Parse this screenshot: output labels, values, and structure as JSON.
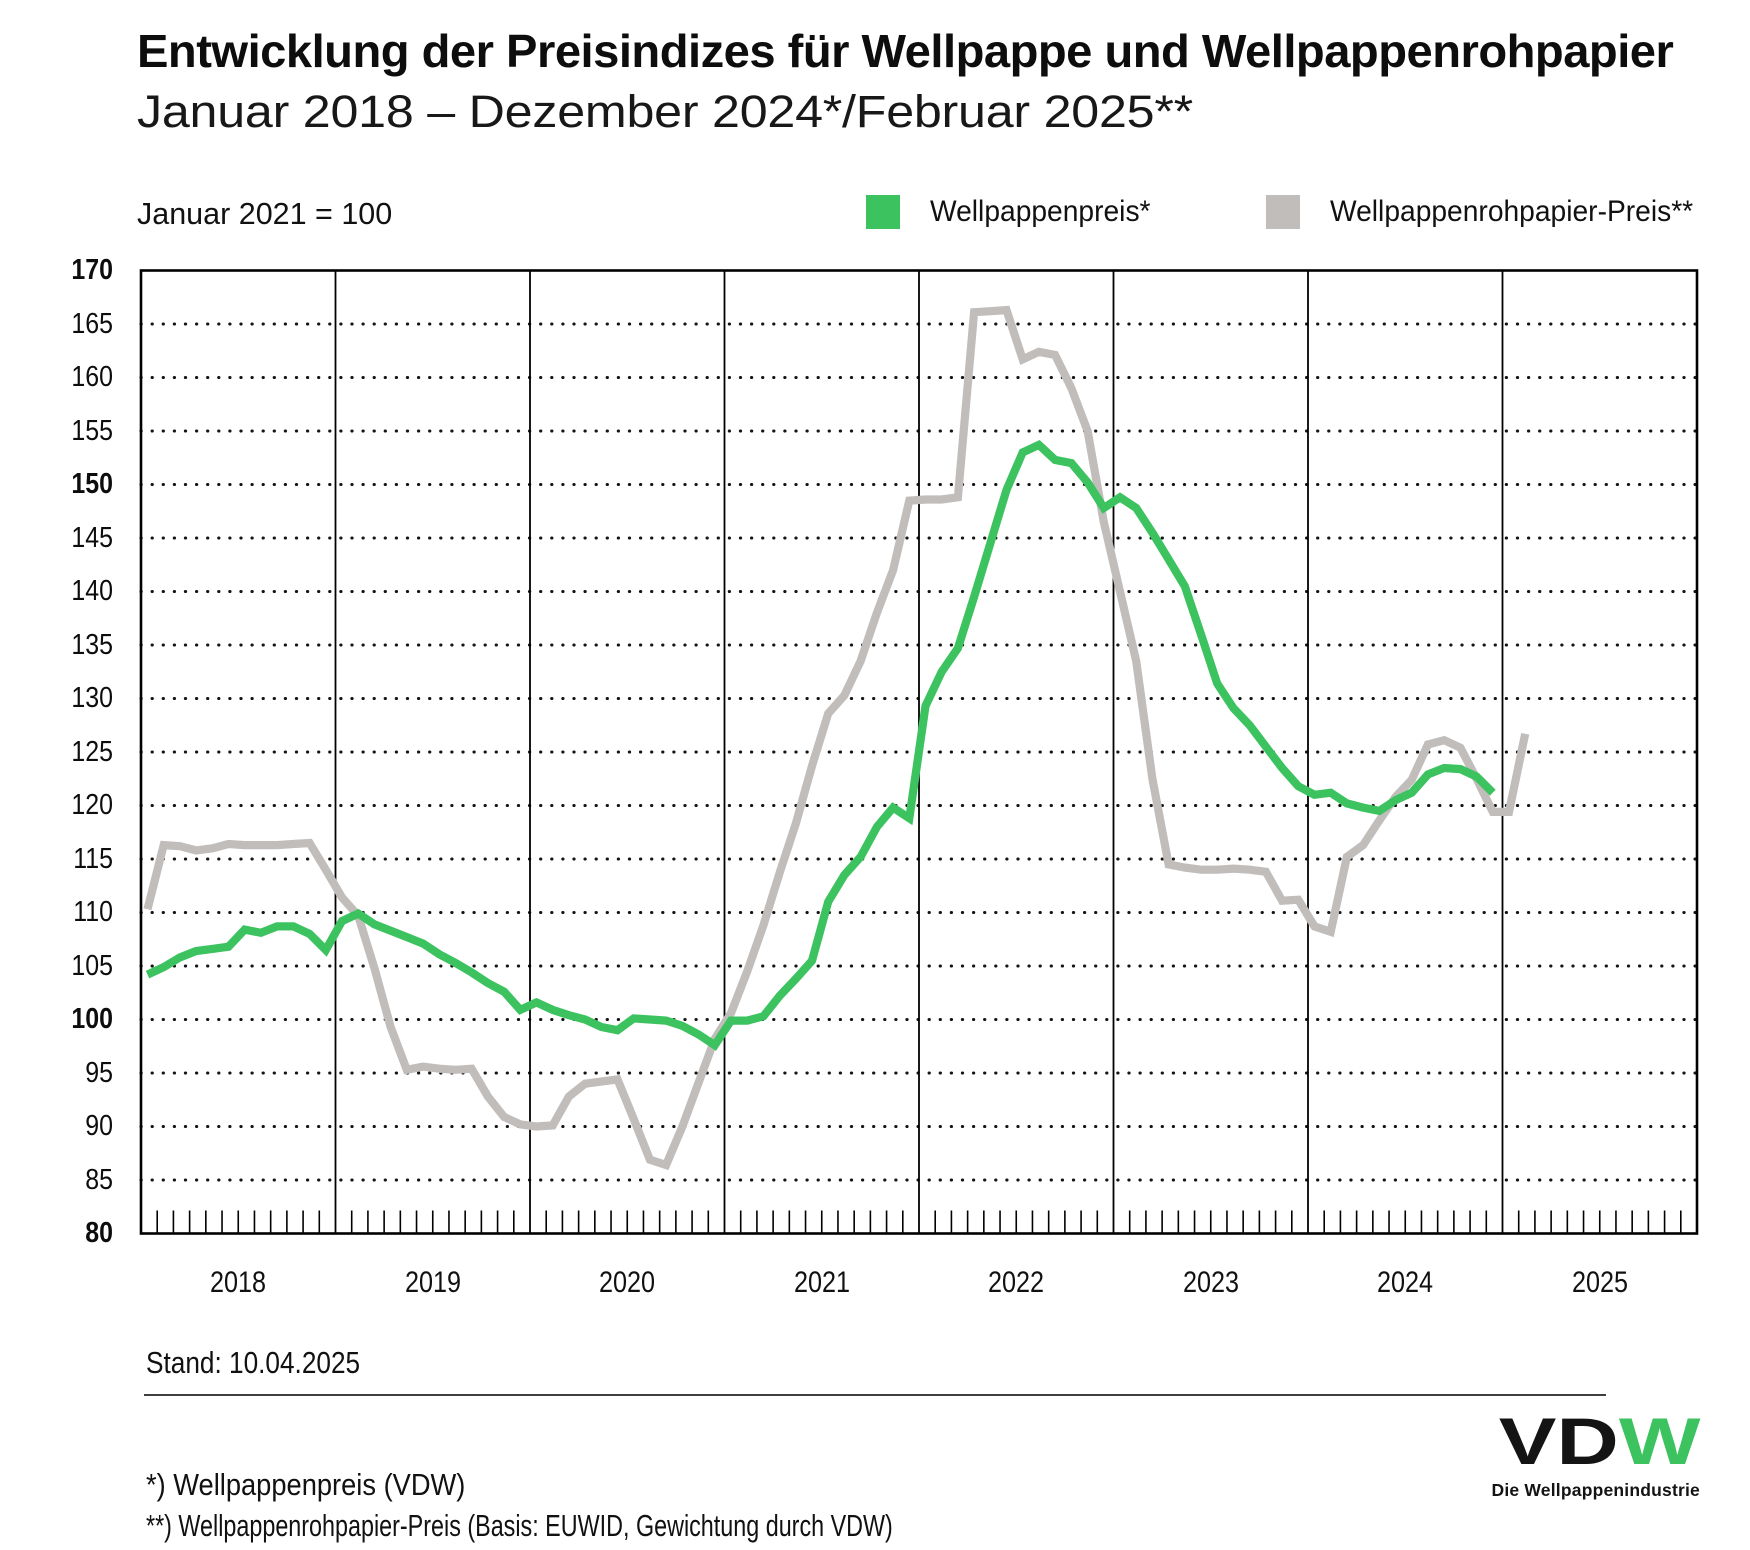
{
  "title": "Entwicklung der Preisindizes für Wellpappe und Wellpappenrohpapier",
  "subtitle": "Januar 2018 – Dezember 2024*/Februar 2025**",
  "base_note": "Januar 2021 = 100",
  "legend": [
    {
      "label": "Wellpappenpreis*",
      "color": "#3cc35f"
    },
    {
      "label": "Wellpappenrohpapier-Preis**",
      "color": "#c1bdbb"
    }
  ],
  "stand": "Stand: 10.04.2025",
  "footnotes": [
    "*) Wellpappenpreis (VDW)",
    "**) Wellpappenrohpapier-Preis (Basis: EUWID, Gewichtung durch VDW)"
  ],
  "logo": {
    "text_dark": "VD",
    "text_green": "W",
    "tagline": "Die Wellpappenindustrie"
  },
  "chart_data": {
    "type": "line",
    "title": "Entwicklung der Preisindizes für Wellpappe und Wellpappenrohpapier",
    "subtitle": "Januar 2018 – Dezember 2024*/Februar 2025**",
    "index_base": "Januar 2021 = 100",
    "ylim": [
      80,
      170
    ],
    "ytick_step": 5,
    "ytick_bold": [
      80,
      100,
      150,
      170
    ],
    "grid": "horizontal-dotted",
    "x_years": [
      2018,
      2019,
      2020,
      2021,
      2022,
      2023,
      2024,
      2025
    ],
    "x_monthly_start": "2018-01",
    "legend_position": "top",
    "series": [
      {
        "name": "Wellpappenpreis*",
        "source_note": "*) Wellpappenpreis (VDW)",
        "color": "#3cc35f",
        "start": "2018-01",
        "end": "2024-12",
        "values": [
          104.2,
          104.9,
          105.8,
          106.4,
          106.6,
          106.8,
          108.4,
          108.1,
          108.7,
          108.7,
          108.0,
          106.5,
          109.2,
          109.9,
          108.9,
          108.3,
          107.7,
          107.1,
          106.1,
          105.3,
          104.4,
          103.4,
          102.6,
          100.9,
          101.6,
          100.9,
          100.4,
          100.0,
          99.3,
          99.0,
          100.1,
          100.0,
          99.9,
          99.4,
          98.6,
          97.6,
          99.9,
          99.9,
          100.3,
          102.2,
          103.8,
          105.5,
          111.0,
          113.5,
          115.2,
          118.0,
          119.8,
          118.8,
          129.3,
          132.5,
          134.7,
          139.5,
          144.5,
          149.5,
          153.0,
          153.7,
          152.3,
          152.0,
          150.2,
          147.8,
          148.8,
          147.8,
          145.5,
          143.0,
          140.5,
          136.0,
          131.4,
          129.1,
          127.5,
          125.5,
          123.5,
          121.8,
          121.0,
          121.2,
          120.2,
          119.8,
          119.5,
          120.5,
          121.2,
          122.9,
          123.5,
          123.4,
          122.7,
          121.2
        ]
      },
      {
        "name": "Wellpappenrohpapier-Preis**",
        "source_note": "**) Wellpappenrohpapier-Preis (Basis: EUWID, Gewichtung durch VDW)",
        "color": "#c1bdbb",
        "start": "2018-01",
        "end": "2025-02",
        "values": [
          110.3,
          116.3,
          116.2,
          115.8,
          116.0,
          116.4,
          116.3,
          116.3,
          116.3,
          116.4,
          116.5,
          114.0,
          111.4,
          109.7,
          104.8,
          99.3,
          95.3,
          95.6,
          95.4,
          95.3,
          95.4,
          92.8,
          90.9,
          90.2,
          90.0,
          90.1,
          92.8,
          94.0,
          94.2,
          94.4,
          90.7,
          86.9,
          86.4,
          90.0,
          94.1,
          98.2,
          100.6,
          104.5,
          108.8,
          113.7,
          118.3,
          123.7,
          128.6,
          130.3,
          133.5,
          138.0,
          142.0,
          148.5,
          148.6,
          148.6,
          148.8,
          166.1,
          166.2,
          166.3,
          161.7,
          162.4,
          162.1,
          159.0,
          155.0,
          146.5,
          140.0,
          133.5,
          122.5,
          114.5,
          114.2,
          114.0,
          114.0,
          114.1,
          114.0,
          113.8,
          111.1,
          111.2,
          108.7,
          108.2,
          115.2,
          116.3,
          118.6,
          120.8,
          122.4,
          125.7,
          126.1,
          125.4,
          122.5,
          119.4,
          119.4,
          126.7
        ]
      }
    ]
  }
}
